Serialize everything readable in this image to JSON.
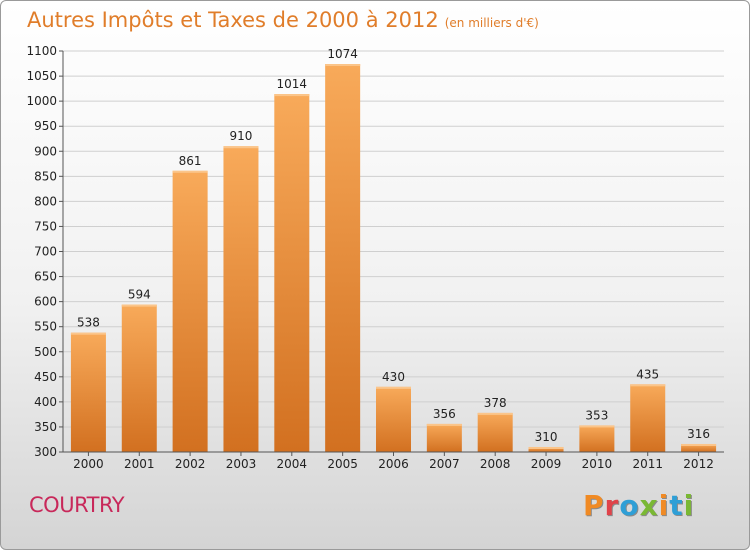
{
  "header": {
    "title": "Autres Impôts et Taxes de 2000 à 2012",
    "unit": "(en milliers d'€)"
  },
  "footer": {
    "commune": "COURTRY",
    "brand": "Proxiti"
  },
  "colors": {
    "title": "#e07d2a",
    "commune": "#c8285a",
    "bar_light": "#f7a555",
    "bar_dark": "#d4731f",
    "brand_letters": [
      "#f08a24",
      "#e0434a",
      "#2f9fd6",
      "#7ab833",
      "#f08a24",
      "#2f9fd6",
      "#7ab833"
    ]
  },
  "chart_data": {
    "type": "bar",
    "title": "Autres Impôts et Taxes de 2000 à 2012",
    "subtitle": "(en milliers d'€)",
    "categories": [
      "2000",
      "2001",
      "2002",
      "2003",
      "2004",
      "2005",
      "2006",
      "2007",
      "2008",
      "2009",
      "2010",
      "2011",
      "2012"
    ],
    "values": [
      538,
      594,
      861,
      910,
      1014,
      1074,
      430,
      356,
      378,
      310,
      353,
      435,
      316
    ],
    "data_labels": [
      "538",
      "594",
      "861",
      "910",
      "1014",
      "1074",
      "430",
      "356",
      "378",
      "310",
      "353",
      "435",
      "316"
    ],
    "y_ticks": [
      "300",
      "350",
      "400",
      "450",
      "500",
      "550",
      "600",
      "650",
      "700",
      "750",
      "800",
      "850",
      "900",
      "950",
      "1000",
      "1050",
      "1100"
    ],
    "ylim": [
      300,
      1100
    ],
    "grid": true,
    "legend": "none"
  }
}
